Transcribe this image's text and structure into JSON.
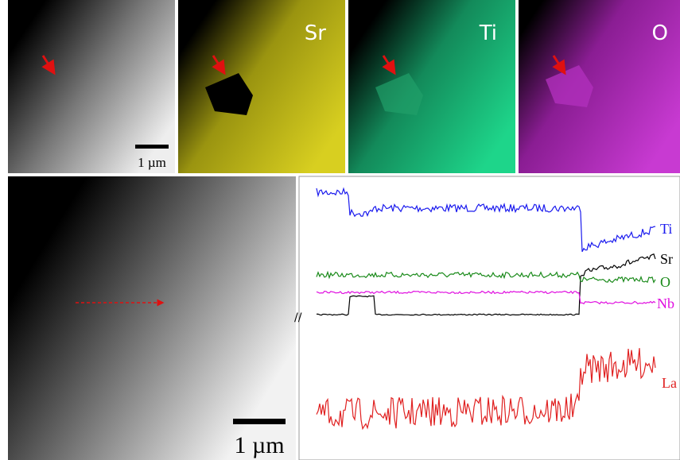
{
  "panels": {
    "map_labels": [
      "Sr",
      "Ti",
      "O"
    ],
    "scale_bar_small": "1 µm",
    "scale_bar_large": "1 µm"
  },
  "profile": {
    "labels": [
      "Ti",
      "Sr",
      "O",
      "Nb",
      "La"
    ]
  }
}
